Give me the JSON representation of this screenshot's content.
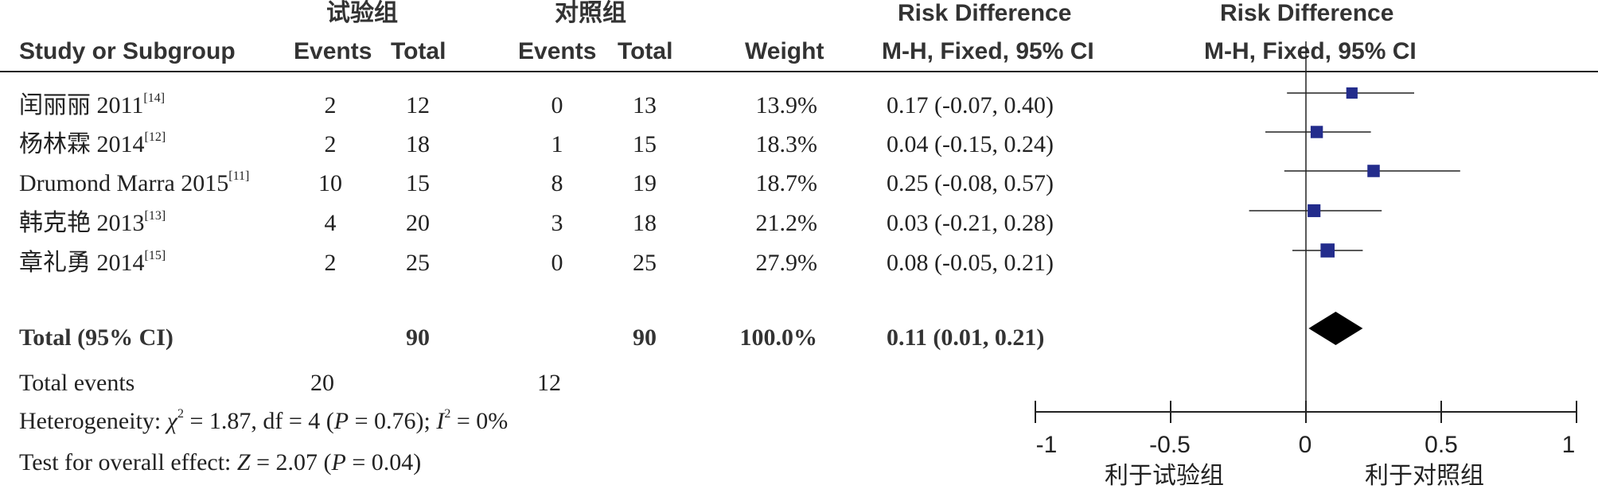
{
  "header": {
    "group_exp": "试验组",
    "group_ctrl": "对照组",
    "rd_title": "Risk Difference",
    "rd_plot_title": "Risk Difference",
    "study_col": "Study or Subgroup",
    "events_exp": "Events",
    "total_exp": "Total",
    "events_ctrl": "Events",
    "total_ctrl": "Total",
    "weight": "Weight",
    "method": "M-H, Fixed, 95% CI",
    "method_plot": "M-H, Fixed, 95% CI"
  },
  "studies": [
    {
      "name": "闰丽丽 2011",
      "ref": "[14]",
      "e_exp": "2",
      "t_exp": "12",
      "e_ctrl": "0",
      "t_ctrl": "13",
      "weight": "13.9%",
      "ci": "0.17 (-0.07, 0.40)"
    },
    {
      "name": "杨林霖 2014",
      "ref": "[12]",
      "e_exp": "2",
      "t_exp": "18",
      "e_ctrl": "1",
      "t_ctrl": "15",
      "weight": "18.3%",
      "ci": "0.04 (-0.15, 0.24)"
    },
    {
      "name": "Drumond Marra 2015",
      "ref": "[11]",
      "e_exp": "10",
      "t_exp": "15",
      "e_ctrl": "8",
      "t_ctrl": "19",
      "weight": "18.7%",
      "ci": "0.25 (-0.08, 0.57)"
    },
    {
      "name": "韩克艳 2013",
      "ref": "[13]",
      "e_exp": "4",
      "t_exp": "20",
      "e_ctrl": "3",
      "t_ctrl": "18",
      "weight": "21.2%",
      "ci": "0.03 (-0.21, 0.28)"
    },
    {
      "name": "章礼勇 2014",
      "ref": "[15]",
      "e_exp": "2",
      "t_exp": "25",
      "e_ctrl": "0",
      "t_ctrl": "25",
      "weight": "27.9%",
      "ci": "0.08 (-0.05, 0.21)"
    }
  ],
  "total": {
    "label": "Total (95% CI)",
    "t_exp": "90",
    "t_ctrl": "90",
    "weight": "100.0%",
    "ci": "0.11 (0.01, 0.21)"
  },
  "total_events": {
    "label": "Total events",
    "e_exp": "20",
    "e_ctrl": "12"
  },
  "heterogeneity": {
    "prefix": "Heterogeneity: ",
    "chi_symbol": "χ",
    "chi_sup": "2",
    "chi_value": " = 1.87, df = 4 (",
    "p_symbol": "P",
    "p_value": " = 0.76); ",
    "i_symbol": "I",
    "i_sup": "2",
    "i_value": " = 0%"
  },
  "overall": {
    "prefix": "Test for overall effect: ",
    "z_symbol": "Z",
    "z_value": " = 2.07 (",
    "p_symbol": "P",
    "p_value": " = 0.04)"
  },
  "axis": {
    "ticks": [
      "-1",
      "-0.5",
      "0",
      "0.5",
      "1"
    ],
    "favours_left": "利于试验组",
    "favours_right": "利于对照组"
  },
  "colors": {
    "marker": "#232c8c",
    "text": "#222222",
    "header": "#333333"
  },
  "chart_data": {
    "type": "forest",
    "title": "Risk Difference",
    "xlim": [
      -1,
      1
    ],
    "xticks": [
      -1,
      -0.5,
      0,
      0.5,
      1
    ],
    "series": [
      {
        "name": "闰丽丽 2011",
        "estimate": 0.17,
        "lower": -0.07,
        "upper": 0.4,
        "weight": 13.9
      },
      {
        "name": "杨林霖 2014",
        "estimate": 0.04,
        "lower": -0.15,
        "upper": 0.24,
        "weight": 18.3
      },
      {
        "name": "Drumond Marra 2015",
        "estimate": 0.25,
        "lower": -0.08,
        "upper": 0.57,
        "weight": 18.7
      },
      {
        "name": "韩克艳 2013",
        "estimate": 0.03,
        "lower": -0.21,
        "upper": 0.28,
        "weight": 21.2
      },
      {
        "name": "章礼勇 2014",
        "estimate": 0.08,
        "lower": -0.05,
        "upper": 0.21,
        "weight": 27.9
      }
    ],
    "pooled": {
      "estimate": 0.11,
      "lower": 0.01,
      "upper": 0.21
    }
  }
}
